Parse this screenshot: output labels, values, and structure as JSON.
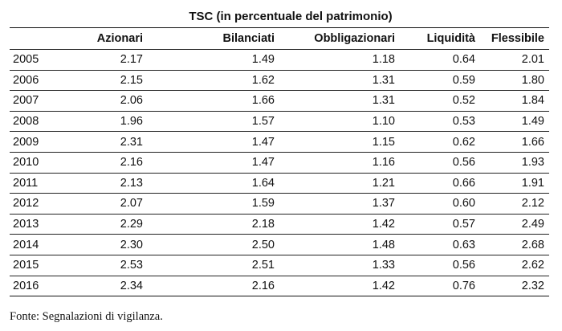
{
  "table": {
    "title": "TSC (in percentuale del patrimonio)",
    "columns": [
      "",
      "Azionari",
      "Bilanciati",
      "Obbligazionari",
      "Liquidità",
      "Flessibile"
    ],
    "rows": [
      [
        "2005",
        "2.17",
        "1.49",
        "1.18",
        "0.64",
        "2.01"
      ],
      [
        "2006",
        "2.15",
        "1.62",
        "1.31",
        "0.59",
        "1.80"
      ],
      [
        "2007",
        "2.06",
        "1.66",
        "1.31",
        "0.52",
        "1.84"
      ],
      [
        "2008",
        "1.96",
        "1.57",
        "1.10",
        "0.53",
        "1.49"
      ],
      [
        "2009",
        "2.31",
        "1.47",
        "1.15",
        "0.62",
        "1.66"
      ],
      [
        "2010",
        "2.16",
        "1.47",
        "1.16",
        "0.56",
        "1.93"
      ],
      [
        "2011",
        "2.13",
        "1.64",
        "1.21",
        "0.66",
        "1.91"
      ],
      [
        "2012",
        "2.07",
        "1.59",
        "1.37",
        "0.60",
        "2.12"
      ],
      [
        "2013",
        "2.29",
        "2.18",
        "1.42",
        "0.57",
        "2.49"
      ],
      [
        "2014",
        "2.30",
        "2.50",
        "1.48",
        "0.63",
        "2.68"
      ],
      [
        "2015",
        "2.53",
        "2.51",
        "1.33",
        "0.56",
        "2.62"
      ],
      [
        "2016",
        "2.34",
        "2.16",
        "1.42",
        "0.76",
        "2.32"
      ]
    ]
  },
  "source_note": "Fonte: Segnalazioni di vigilanza."
}
